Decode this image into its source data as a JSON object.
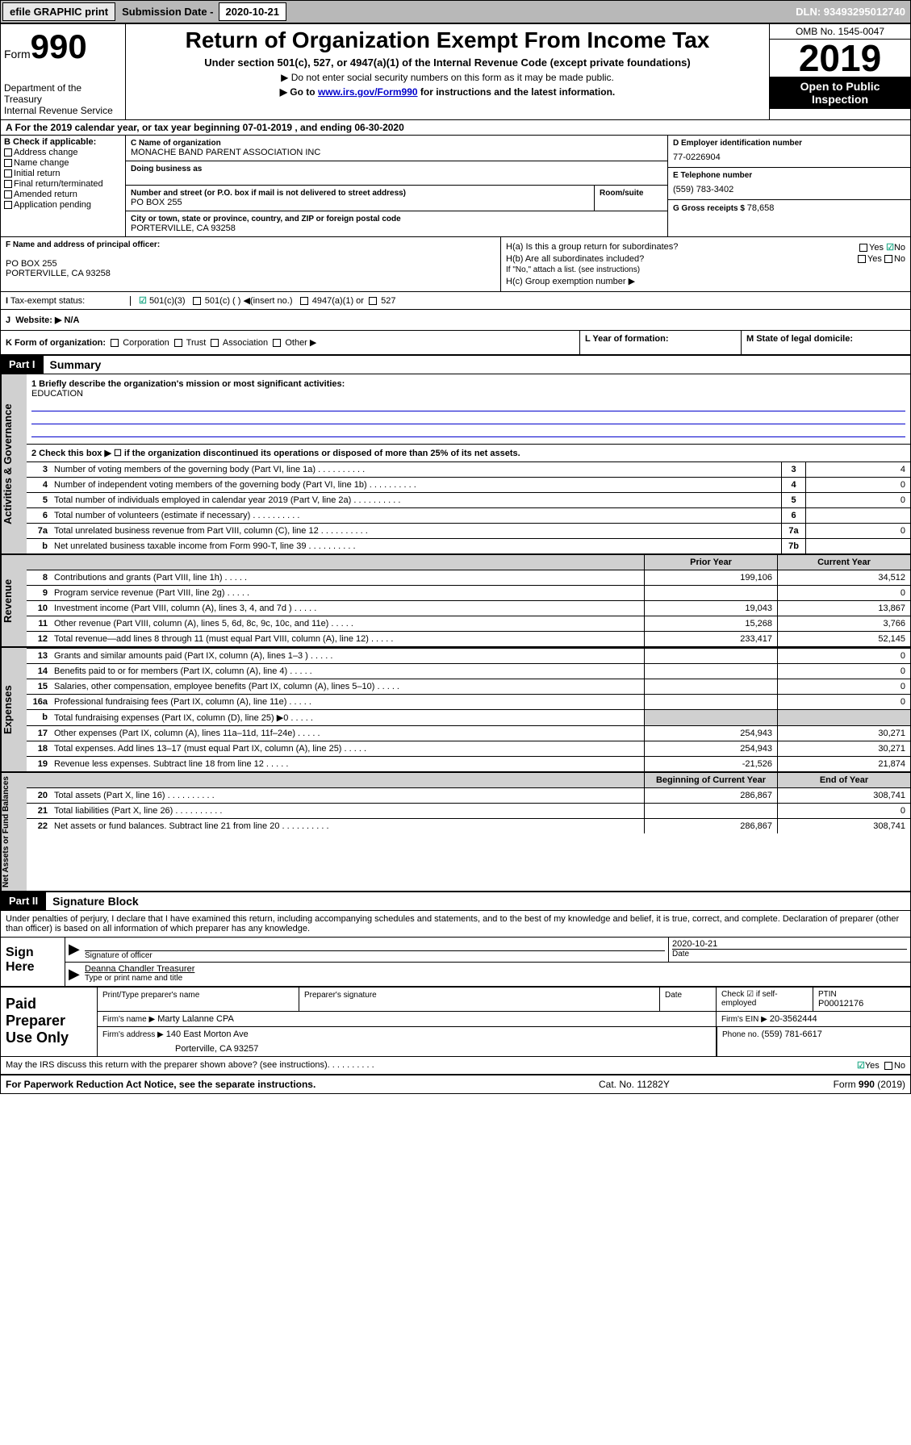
{
  "topbar": {
    "efile": "efile GRAPHIC print",
    "sub_label": "Submission Date - ",
    "sub_date": "2020-10-21",
    "dln": "DLN: 93493295012740"
  },
  "header": {
    "form": "Form",
    "form_num": "990",
    "dept": "Department of the Treasury\nInternal Revenue Service",
    "title": "Return of Organization Exempt From Income Tax",
    "subtitle": "Under section 501(c), 527, or 4947(a)(1) of the Internal Revenue Code (except private foundations)",
    "instr1": "▶ Do not enter social security numbers on this form as it may be made public.",
    "instr2_pre": "▶ Go to ",
    "instr2_link": "www.irs.gov/Form990",
    "instr2_post": " for instructions and the latest information.",
    "omb": "OMB No. 1545-0047",
    "year": "2019",
    "open": "Open to Public Inspection"
  },
  "row_a": "A For the 2019 calendar year, or tax year beginning 07-01-2019    , and ending 06-30-2020",
  "col_b": {
    "hdr": "B Check if applicable:",
    "items": [
      "Address change",
      "Name change",
      "Initial return",
      "Final return/terminated",
      "Amended return",
      "Application pending"
    ]
  },
  "col_c": {
    "name_lbl": "C Name of organization",
    "name": "MONACHE BAND PARENT ASSOCIATION INC",
    "dba_lbl": "Doing business as",
    "addr_lbl": "Number and street (or P.O. box if mail is not delivered to street address)",
    "room_lbl": "Room/suite",
    "addr": "PO BOX 255",
    "city_lbl": "City or town, state or province, country, and ZIP or foreign postal code",
    "city": "PORTERVILLE, CA  93258"
  },
  "col_d": {
    "ein_lbl": "D Employer identification number",
    "ein": "77-0226904",
    "tel_lbl": "E Telephone number",
    "tel": "(559) 783-3402",
    "gross_lbl": "G Gross receipts $ ",
    "gross": "78,658"
  },
  "col_f": {
    "lbl": "F  Name and address of principal officer:",
    "addr1": "PO BOX 255",
    "addr2": "PORTERVILLE, CA  93258"
  },
  "col_h": {
    "ha": "H(a)  Is this a group return for subordinates?",
    "hb": "H(b)  Are all subordinates included?",
    "hb_note": "If \"No,\" attach a list. (see instructions)",
    "hc": "H(c)  Group exemption number ▶",
    "yes": "Yes",
    "no": "No"
  },
  "row_i": {
    "lbl": "Tax-exempt status:",
    "opt1": "501(c)(3)",
    "opt2": "501(c) (  ) ◀(insert no.)",
    "opt3": "4947(a)(1) or",
    "opt4": "527"
  },
  "row_j": "Website: ▶  N/A",
  "row_k": {
    "lbl": "K Form of organization:",
    "opts": [
      "Corporation",
      "Trust",
      "Association",
      "Other ▶"
    ],
    "l": "L Year of formation:",
    "m": "M State of legal domicile:"
  },
  "part1": {
    "hdr": "Part I",
    "title": "Summary",
    "line1_lbl": "1  Briefly describe the organization's mission or most significant activities:",
    "line1_val": "EDUCATION",
    "line2": "2   Check this box ▶ ☐  if the organization discontinued its operations or disposed of more than 25% of its net assets.",
    "side1": "Activities & Governance",
    "side2": "Revenue",
    "side3": "Expenses",
    "side4": "Net Assets or Fund Balances",
    "prior": "Prior Year",
    "current": "Current Year",
    "boy": "Beginning of Current Year",
    "eoy": "End of Year",
    "rows_gov": [
      {
        "n": "3",
        "d": "Number of voting members of the governing body (Part VI, line 1a)",
        "box": "3",
        "v": "4"
      },
      {
        "n": "4",
        "d": "Number of independent voting members of the governing body (Part VI, line 1b)",
        "box": "4",
        "v": "0"
      },
      {
        "n": "5",
        "d": "Total number of individuals employed in calendar year 2019 (Part V, line 2a)",
        "box": "5",
        "v": "0"
      },
      {
        "n": "6",
        "d": "Total number of volunteers (estimate if necessary)",
        "box": "6",
        "v": ""
      },
      {
        "n": "7a",
        "d": "Total unrelated business revenue from Part VIII, column (C), line 12",
        "box": "7a",
        "v": "0"
      },
      {
        "n": "b",
        "d": "Net unrelated business taxable income from Form 990-T, line 39",
        "box": "7b",
        "v": ""
      }
    ],
    "rows_rev": [
      {
        "n": "8",
        "d": "Contributions and grants (Part VIII, line 1h)",
        "p": "199,106",
        "c": "34,512"
      },
      {
        "n": "9",
        "d": "Program service revenue (Part VIII, line 2g)",
        "p": "",
        "c": "0"
      },
      {
        "n": "10",
        "d": "Investment income (Part VIII, column (A), lines 3, 4, and 7d )",
        "p": "19,043",
        "c": "13,867"
      },
      {
        "n": "11",
        "d": "Other revenue (Part VIII, column (A), lines 5, 6d, 8c, 9c, 10c, and 11e)",
        "p": "15,268",
        "c": "3,766"
      },
      {
        "n": "12",
        "d": "Total revenue—add lines 8 through 11 (must equal Part VIII, column (A), line 12)",
        "p": "233,417",
        "c": "52,145"
      }
    ],
    "rows_exp": [
      {
        "n": "13",
        "d": "Grants and similar amounts paid (Part IX, column (A), lines 1–3 )",
        "p": "",
        "c": "0"
      },
      {
        "n": "14",
        "d": "Benefits paid to or for members (Part IX, column (A), line 4)",
        "p": "",
        "c": "0"
      },
      {
        "n": "15",
        "d": "Salaries, other compensation, employee benefits (Part IX, column (A), lines 5–10)",
        "p": "",
        "c": "0"
      },
      {
        "n": "16a",
        "d": "Professional fundraising fees (Part IX, column (A), line 11e)",
        "p": "",
        "c": "0"
      },
      {
        "n": "b",
        "d": "Total fundraising expenses (Part IX, column (D), line 25) ▶0",
        "p": "shade",
        "c": "shade"
      },
      {
        "n": "17",
        "d": "Other expenses (Part IX, column (A), lines 11a–11d, 11f–24e)",
        "p": "254,943",
        "c": "30,271"
      },
      {
        "n": "18",
        "d": "Total expenses. Add lines 13–17 (must equal Part IX, column (A), line 25)",
        "p": "254,943",
        "c": "30,271"
      },
      {
        "n": "19",
        "d": "Revenue less expenses. Subtract line 18 from line 12",
        "p": "-21,526",
        "c": "21,874"
      }
    ],
    "rows_net": [
      {
        "n": "20",
        "d": "Total assets (Part X, line 16)",
        "p": "286,867",
        "c": "308,741"
      },
      {
        "n": "21",
        "d": "Total liabilities (Part X, line 26)",
        "p": "",
        "c": "0"
      },
      {
        "n": "22",
        "d": "Net assets or fund balances. Subtract line 21 from line 20",
        "p": "286,867",
        "c": "308,741"
      }
    ]
  },
  "part2": {
    "hdr": "Part II",
    "title": "Signature Block",
    "decl": "Under penalties of perjury, I declare that I have examined this return, including accompanying schedules and statements, and to the best of my knowledge and belief, it is true, correct, and complete. Declaration of preparer (other than officer) is based on all information of which preparer has any knowledge.",
    "sign_here": "Sign Here",
    "sig_date": "2020-10-21",
    "sig_lbl": "Signature of officer",
    "date_lbl": "Date",
    "name": "Deanna Chandler  Treasurer",
    "name_lbl": "Type or print name and title",
    "paid": "Paid Preparer Use Only",
    "prep_name_lbl": "Print/Type preparer's name",
    "prep_sig_lbl": "Preparer's signature",
    "prep_date_lbl": "Date",
    "check_lbl": "Check ☑ if self-employed",
    "ptin_lbl": "PTIN",
    "ptin": "P00012176",
    "firm_name_lbl": "Firm's name    ▶",
    "firm_name": "Marty Lalanne CPA",
    "firm_ein_lbl": "Firm's EIN ▶",
    "firm_ein": "20-3562444",
    "firm_addr_lbl": "Firm's address ▶",
    "firm_addr1": "140 East Morton Ave",
    "firm_addr2": "Porterville, CA  93257",
    "phone_lbl": "Phone no.",
    "phone": "(559) 781-6617",
    "discuss": "May the IRS discuss this return with the preparer shown above? (see instructions)"
  },
  "footer": {
    "l": "For Paperwork Reduction Act Notice, see the separate instructions.",
    "m": "Cat. No. 11282Y",
    "r": "Form 990 (2019)"
  }
}
